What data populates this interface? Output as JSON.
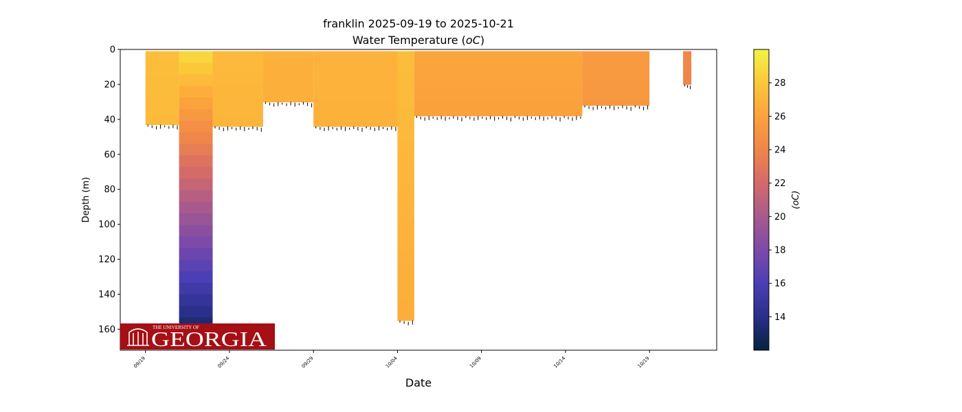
{
  "chart_data": {
    "type": "scatter",
    "title_line1": "franklin 2025-09-19 to 2025-10-21",
    "title_line2_prefix": "Water Temperature (",
    "title_line2_unit": "oC",
    "title_line2_suffix": ")",
    "xlabel": "Date",
    "ylabel": "Depth (m)",
    "x_ticks": [
      "09/19",
      "09/24",
      "09/29",
      "10/04",
      "10/09",
      "10/14",
      "10/19"
    ],
    "x_range_days_from_0919": [
      -1.5,
      34
    ],
    "y_ticks": [
      0,
      20,
      40,
      60,
      80,
      100,
      120,
      140,
      160
    ],
    "ylim": [
      172,
      0
    ],
    "colorbar": {
      "label": "(oC)",
      "ticks": [
        14,
        16,
        18,
        20,
        22,
        24,
        26,
        28
      ],
      "range": [
        12,
        30
      ],
      "colormap": "thermal",
      "stops": [
        "#04233e",
        "#2b2f8a",
        "#4a3fb5",
        "#7c4aa8",
        "#a85a8c",
        "#d46a6a",
        "#f0864a",
        "#fba23c",
        "#fdc73a",
        "#f0f446"
      ]
    },
    "profiles": [
      {
        "start": "09/19",
        "end": "09/21",
        "max_depth": 43,
        "top_temp": 27.5,
        "bottom_temp": 27.3
      },
      {
        "start": "09/21",
        "end": "09/23",
        "max_depth": 160,
        "top_temp": 29,
        "bottom_temp": 13
      },
      {
        "start": "09/23",
        "end": "09/26",
        "max_depth": 44,
        "top_temp": 27.3,
        "bottom_temp": 27.0
      },
      {
        "start": "09/26",
        "end": "09/29",
        "max_depth": 30,
        "top_temp": 26.8,
        "bottom_temp": 26.7
      },
      {
        "start": "09/29",
        "end": "10/04",
        "max_depth": 44,
        "top_temp": 26.9,
        "bottom_temp": 26.8
      },
      {
        "start": "10/04",
        "end": "10/05",
        "max_depth": 155,
        "top_temp": 27.5,
        "bottom_temp": 26.6
      },
      {
        "start": "10/05",
        "end": "10/15",
        "max_depth": 38,
        "top_temp": 26.2,
        "bottom_temp": 25.9
      },
      {
        "start": "10/15",
        "end": "10/19",
        "max_depth": 32,
        "top_temp": 25.5,
        "bottom_temp": 25.3
      },
      {
        "start": "10/21",
        "end": "10/21",
        "max_depth": 20,
        "top_temp": 24.0,
        "bottom_temp": 24.0
      }
    ]
  },
  "logo": {
    "small_text": "THE UNIVERSITY OF",
    "big_text": "GEORGIA",
    "color": "#a50f15"
  }
}
